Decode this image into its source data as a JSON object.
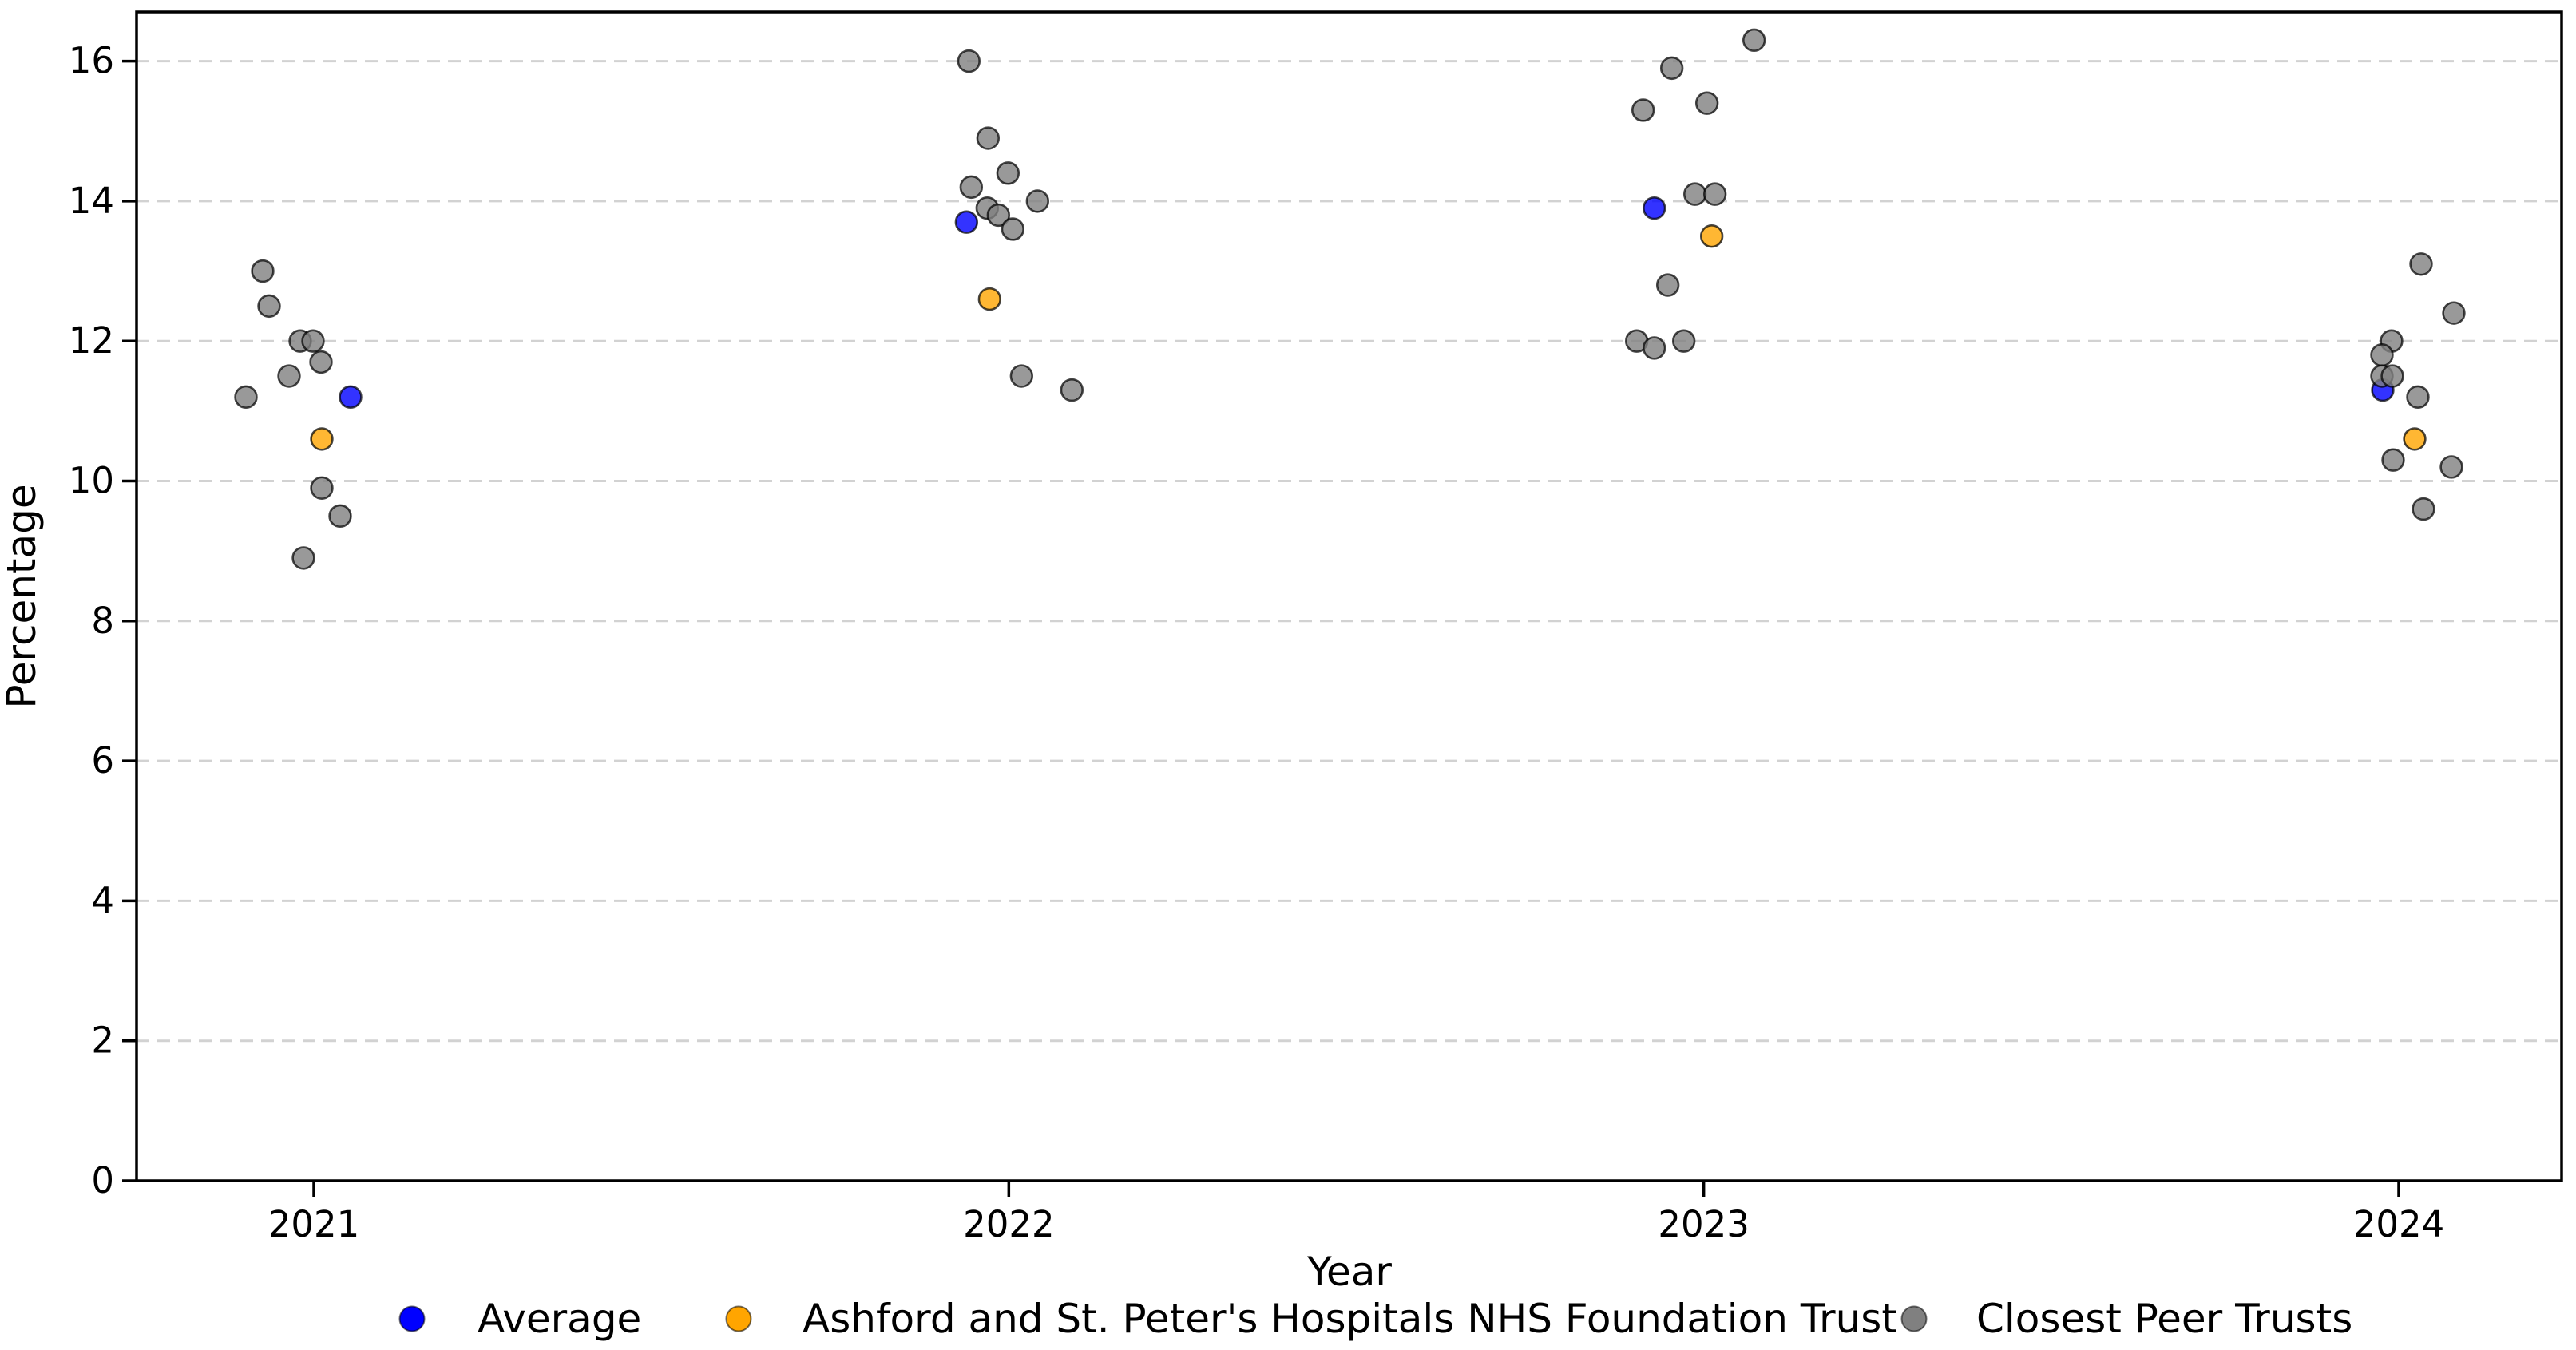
{
  "chart_data": {
    "type": "scatter",
    "title": "",
    "xlabel": "Year",
    "ylabel": "Percentage",
    "categories": [
      "2021",
      "2022",
      "2023",
      "2024"
    ],
    "y_ticks": [
      0,
      2,
      4,
      6,
      8,
      10,
      12,
      14,
      16
    ],
    "ylim": [
      0,
      16.7
    ],
    "grid": "horizontal-dashed",
    "legend_position": "bottom",
    "marker_style": {
      "fill_opacity": 0.8,
      "edge_color": "#000000",
      "edge_opacity": 0.72
    },
    "series": [
      {
        "name": "Average",
        "color": "#0000ff",
        "points": [
          {
            "x": "2021",
            "y": 11.2,
            "dx": 46
          },
          {
            "x": "2022",
            "y": 13.7,
            "dx": -53
          },
          {
            "x": "2023",
            "y": 13.9,
            "dx": -62
          },
          {
            "x": "2024",
            "y": 11.3,
            "dx": -20
          }
        ]
      },
      {
        "name": "Ashford and St. Peter's Hospitals NHS Foundation Trust",
        "color": "#ffa500",
        "points": [
          {
            "x": "2021",
            "y": 10.6,
            "dx": 10
          },
          {
            "x": "2022",
            "y": 12.6,
            "dx": -24
          },
          {
            "x": "2023",
            "y": 13.5,
            "dx": 10
          },
          {
            "x": "2024",
            "y": 10.6,
            "dx": 20
          }
        ]
      },
      {
        "name": "Closest Peer Trusts",
        "color": "#808080",
        "points": [
          {
            "x": "2021",
            "y": 13.0,
            "dx": -64
          },
          {
            "x": "2021",
            "y": 12.5,
            "dx": -56
          },
          {
            "x": "2021",
            "y": 12.0,
            "dx": -17
          },
          {
            "x": "2021",
            "y": 12.0,
            "dx": -1
          },
          {
            "x": "2021",
            "y": 11.7,
            "dx": 9
          },
          {
            "x": "2021",
            "y": 11.5,
            "dx": -31
          },
          {
            "x": "2021",
            "y": 11.2,
            "dx": -85
          },
          {
            "x": "2021",
            "y": 9.9,
            "dx": 10
          },
          {
            "x": "2021",
            "y": 9.5,
            "dx": 33
          },
          {
            "x": "2021",
            "y": 8.9,
            "dx": -13
          },
          {
            "x": "2022",
            "y": 16.0,
            "dx": -50
          },
          {
            "x": "2022",
            "y": 14.9,
            "dx": -26
          },
          {
            "x": "2022",
            "y": 14.4,
            "dx": -1
          },
          {
            "x": "2022",
            "y": 14.2,
            "dx": -47
          },
          {
            "x": "2022",
            "y": 14.0,
            "dx": 36
          },
          {
            "x": "2022",
            "y": 13.9,
            "dx": -27
          },
          {
            "x": "2022",
            "y": 13.8,
            "dx": -13
          },
          {
            "x": "2022",
            "y": 13.6,
            "dx": 5
          },
          {
            "x": "2022",
            "y": 11.5,
            "dx": 16
          },
          {
            "x": "2022",
            "y": 11.3,
            "dx": 79
          },
          {
            "x": "2023",
            "y": 16.3,
            "dx": 63
          },
          {
            "x": "2023",
            "y": 15.9,
            "dx": -40
          },
          {
            "x": "2023",
            "y": 15.4,
            "dx": 4
          },
          {
            "x": "2023",
            "y": 15.3,
            "dx": -76
          },
          {
            "x": "2023",
            "y": 14.1,
            "dx": -11
          },
          {
            "x": "2023",
            "y": 14.1,
            "dx": 14
          },
          {
            "x": "2023",
            "y": 12.8,
            "dx": -45
          },
          {
            "x": "2023",
            "y": 12.0,
            "dx": -84
          },
          {
            "x": "2023",
            "y": 11.9,
            "dx": -62
          },
          {
            "x": "2023",
            "y": 12.0,
            "dx": -25
          },
          {
            "x": "2024",
            "y": 13.1,
            "dx": 28
          },
          {
            "x": "2024",
            "y": 12.4,
            "dx": 69
          },
          {
            "x": "2024",
            "y": 12.0,
            "dx": -9
          },
          {
            "x": "2024",
            "y": 11.8,
            "dx": -21
          },
          {
            "x": "2024",
            "y": 11.5,
            "dx": -21
          },
          {
            "x": "2024",
            "y": 11.5,
            "dx": -8
          },
          {
            "x": "2024",
            "y": 11.2,
            "dx": 24
          },
          {
            "x": "2024",
            "y": 10.3,
            "dx": -7
          },
          {
            "x": "2024",
            "y": 10.2,
            "dx": 66
          },
          {
            "x": "2024",
            "y": 9.6,
            "dx": 31
          }
        ]
      }
    ]
  },
  "legend": {
    "items": [
      {
        "label": "Average",
        "color": "#0000ff"
      },
      {
        "label": "Ashford and St. Peter's Hospitals NHS Foundation Trust",
        "color": "#ffa500"
      },
      {
        "label": "Closest Peer Trusts",
        "color": "#808080"
      }
    ]
  },
  "style": {
    "grid_color": "#d2d2d2",
    "spine_color": "#000000",
    "background": "#ffffff"
  }
}
